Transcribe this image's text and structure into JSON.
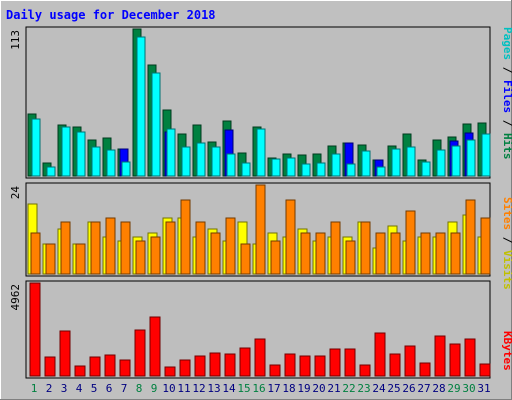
{
  "chart_data": {
    "type": "bar",
    "title": "Daily usage for December 2018",
    "categories": [
      "1",
      "2",
      "3",
      "4",
      "5",
      "6",
      "7",
      "8",
      "9",
      "10",
      "11",
      "12",
      "13",
      "14",
      "15",
      "16",
      "17",
      "18",
      "19",
      "20",
      "21",
      "22",
      "23",
      "24",
      "25",
      "26",
      "27",
      "28",
      "29",
      "30",
      "31"
    ],
    "weekend_days": [
      "1",
      "8",
      "9",
      "15",
      "16",
      "22",
      "23",
      "29",
      "30"
    ],
    "panels": [
      {
        "id": "hits-panel",
        "ylim": [
          0,
          113
        ],
        "max_label": "113",
        "series": [
          {
            "name": "Hits",
            "color": "#008040",
            "values": [
              48,
              10,
              39,
              38,
              28,
              29,
              21,
              113,
              85,
              51,
              32,
              39,
              26,
              42,
              18,
              38,
              14,
              17,
              16,
              17,
              23,
              25,
              24,
              12,
              23,
              32,
              12,
              28,
              30,
              40,
              41
            ]
          },
          {
            "name": "Files",
            "color": "#0000ff",
            "values": [
              0,
              0,
              0,
              0,
              0,
              0,
              21,
              0,
              0,
              34,
              0,
              0,
              0,
              35,
              0,
              0,
              0,
              0,
              0,
              0,
              0,
              25,
              0,
              12,
              0,
              0,
              0,
              0,
              27,
              33,
              0
            ]
          },
          {
            "name": "Pages",
            "color": "#00ffff",
            "values": [
              44,
              7,
              38,
              34,
              22,
              20,
              11,
              107,
              79,
              36,
              22,
              25,
              22,
              17,
              10,
              36,
              13,
              14,
              9,
              10,
              17,
              9,
              19,
              7,
              21,
              22,
              11,
              20,
              23,
              28,
              32
            ]
          }
        ],
        "legend": [
          "Pages",
          "Files",
          "Hits"
        ]
      },
      {
        "id": "visits-panel",
        "ylim": [
          0,
          24
        ],
        "max_label": "24",
        "series": [
          {
            "name": "Visits",
            "color": "#ffff00",
            "values": [
              19,
              8,
              12,
              8,
              14,
              10,
              9,
              10,
              11,
              15,
              15,
              10,
              12,
              9,
              14,
              8,
              11,
              10,
              12,
              9,
              10,
              10,
              14,
              7,
              13,
              9,
              10,
              10,
              14,
              16,
              10
            ]
          },
          {
            "name": "Sites",
            "color": "#ff8000",
            "values": [
              11,
              8,
              14,
              8,
              14,
              15,
              14,
              9,
              10,
              14,
              20,
              14,
              11,
              15,
              8,
              24,
              9,
              20,
              11,
              11,
              14,
              9,
              14,
              11,
              11,
              17,
              11,
              11,
              11,
              20,
              15
            ]
          }
        ],
        "legend": [
          "Sites",
          "Visits"
        ]
      },
      {
        "id": "kbytes-panel",
        "ylim": [
          0,
          4962
        ],
        "max_label": "4962",
        "series": [
          {
            "name": "KBytes",
            "color": "#ff0000",
            "values": [
              4962,
              1000,
              2400,
              550,
              1000,
              1100,
              850,
              2450,
              3150,
              500,
              850,
              1050,
              1250,
              1150,
              1500,
              2000,
              580,
              1200,
              1050,
              1050,
              1450,
              1450,
              600,
              2300,
              1150,
              1600,
              700,
              2150,
              1700,
              1950,
              650
            ]
          }
        ],
        "legend": [
          "KBytes"
        ]
      }
    ],
    "legend_separator": " / "
  },
  "colors": {
    "frame": "#c0c0c0",
    "plot_bg": "#bebebe",
    "title": "#0000ff",
    "weekday_label": "#000080",
    "weekend_label": "#008040",
    "max_label": "#000000"
  }
}
